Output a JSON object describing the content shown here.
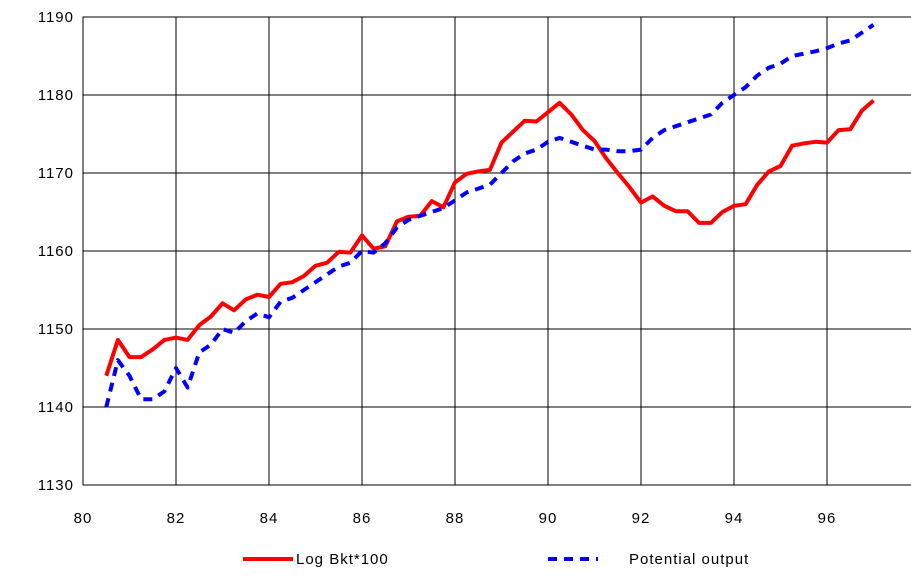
{
  "chart_data": {
    "type": "line",
    "xlim": [
      80,
      98
    ],
    "ylim": [
      1130,
      1190
    ],
    "x_ticks": [
      80,
      82,
      84,
      86,
      88,
      90,
      92,
      94,
      96
    ],
    "x_tick_labels": [
      "80",
      "82",
      "84",
      "86",
      "88",
      "90",
      "92",
      "94",
      "96"
    ],
    "y_ticks": [
      1130,
      1140,
      1150,
      1160,
      1170,
      1180,
      1190
    ],
    "y_tick_labels": [
      "1130",
      "1140",
      "1150",
      "1160",
      "1170",
      "1180",
      "1190"
    ],
    "grid": true,
    "legend_position": "bottom",
    "series": [
      {
        "name": "Log Bkt*100",
        "color": "#ff0000",
        "style": "solid",
        "x": [
          80.5,
          80.75,
          81.0,
          81.25,
          81.5,
          81.75,
          82.0,
          82.25,
          82.5,
          82.75,
          83.0,
          83.25,
          83.5,
          83.75,
          84.0,
          84.25,
          84.5,
          84.75,
          85.0,
          85.25,
          85.5,
          85.75,
          86.0,
          86.25,
          86.5,
          86.75,
          87.0,
          87.25,
          87.5,
          87.75,
          88.0,
          88.25,
          88.5,
          88.75,
          89.0,
          89.25,
          89.5,
          89.75,
          90.0,
          90.25,
          90.5,
          90.75,
          91.0,
          91.25,
          91.5,
          91.75,
          92.0,
          92.25,
          92.5,
          92.75,
          93.0,
          93.25,
          93.5,
          93.75,
          94.0,
          94.25,
          94.5,
          94.75,
          95.0,
          95.25,
          95.5,
          95.75,
          96.0,
          96.25,
          96.5,
          96.75,
          97.0
        ],
        "values": [
          1144.0,
          1148.6,
          1146.4,
          1146.4,
          1147.4,
          1148.6,
          1148.9,
          1148.6,
          1150.5,
          1151.6,
          1153.3,
          1152.4,
          1153.8,
          1154.4,
          1154.1,
          1155.8,
          1156.0,
          1156.8,
          1158.1,
          1158.5,
          1159.9,
          1159.8,
          1162.0,
          1160.3,
          1160.6,
          1163.8,
          1164.4,
          1164.5,
          1166.4,
          1165.6,
          1168.8,
          1169.9,
          1170.2,
          1170.4,
          1173.9,
          1175.3,
          1176.7,
          1176.6,
          1177.8,
          1179.0,
          1177.5,
          1175.5,
          1174.1,
          1171.9,
          1170.0,
          1168.2,
          1166.2,
          1167.0,
          1165.8,
          1165.1,
          1165.1,
          1163.6,
          1163.6,
          1165.0,
          1165.8,
          1166.0,
          1168.5,
          1170.2,
          1170.9,
          1173.5,
          1173.8,
          1174.0,
          1173.9,
          1175.5,
          1175.6,
          1178.0,
          1179.3
        ]
      },
      {
        "name": "Potential output",
        "color": "#0000ff",
        "style": "dashed",
        "x": [
          80.5,
          80.75,
          81.0,
          81.25,
          81.5,
          81.75,
          82.0,
          82.25,
          82.5,
          82.75,
          83.0,
          83.25,
          83.5,
          83.75,
          84.0,
          84.25,
          84.5,
          84.75,
          85.0,
          85.25,
          85.5,
          85.75,
          86.0,
          86.25,
          86.5,
          86.75,
          87.0,
          87.25,
          87.5,
          87.75,
          88.0,
          88.25,
          88.5,
          88.75,
          89.0,
          89.25,
          89.5,
          89.75,
          90.0,
          90.25,
          90.5,
          90.75,
          91.0,
          91.25,
          91.5,
          91.75,
          92.0,
          92.25,
          92.5,
          92.75,
          93.0,
          93.25,
          93.5,
          93.75,
          94.0,
          94.25,
          94.5,
          94.75,
          95.0,
          95.25,
          95.5,
          95.75,
          96.0,
          96.25,
          96.5,
          96.75,
          97.0
        ],
        "values": [
          1140.0,
          1146.0,
          1144.0,
          1141.0,
          1141.0,
          1142.0,
          1145.0,
          1142.5,
          1147.0,
          1148.0,
          1150.0,
          1149.5,
          1151.0,
          1152.0,
          1151.5,
          1153.5,
          1154.0,
          1155.0,
          1156.0,
          1157.0,
          1158.0,
          1158.5,
          1160.0,
          1159.8,
          1161.0,
          1163.0,
          1164.0,
          1164.5,
          1165.0,
          1165.5,
          1166.5,
          1167.5,
          1168.0,
          1168.5,
          1170.0,
          1171.5,
          1172.5,
          1173.0,
          1174.0,
          1174.5,
          1174.0,
          1173.5,
          1173.0,
          1173.0,
          1172.8,
          1172.8,
          1173.0,
          1174.5,
          1175.5,
          1176.0,
          1176.5,
          1177.0,
          1177.5,
          1179.0,
          1180.0,
          1181.0,
          1182.5,
          1183.5,
          1184.0,
          1185.0,
          1185.3,
          1185.6,
          1186.0,
          1186.6,
          1187.0,
          1188.0,
          1189.0
        ]
      }
    ]
  }
}
